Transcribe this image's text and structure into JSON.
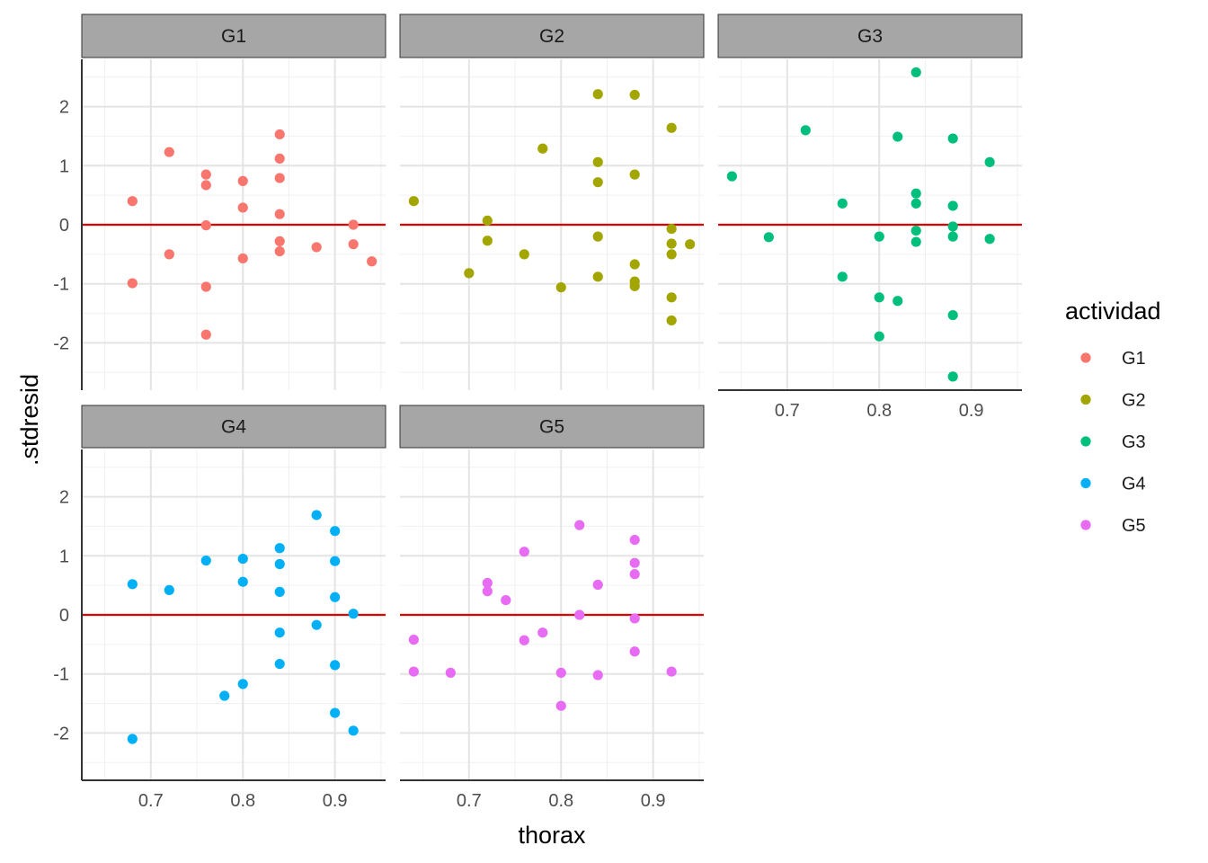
{
  "chart_data": {
    "type": "scatter",
    "xlabel": "thorax",
    "ylabel": ".stdresid",
    "xlim": [
      0.625,
      0.955
    ],
    "ylim": [
      -2.8,
      2.8
    ],
    "x_ticks": [
      0.7,
      0.8,
      0.9
    ],
    "x_tick_labels": [
      "0.7",
      "0.8",
      "0.9"
    ],
    "y_ticks": [
      -2,
      -1,
      0,
      1,
      2
    ],
    "y_tick_labels": [
      "-2",
      "-1",
      "0",
      "1",
      "2"
    ],
    "hline": {
      "y": 0,
      "color": "#e00000"
    },
    "grid": true,
    "legend": {
      "title": "actividad",
      "position": "right"
    },
    "facets": [
      {
        "name": "G1",
        "color": "#F8766D",
        "points": [
          [
            0.68,
            0.4
          ],
          [
            0.68,
            -0.99
          ],
          [
            0.72,
            1.23
          ],
          [
            0.72,
            -0.5
          ],
          [
            0.76,
            0.85
          ],
          [
            0.76,
            0.67
          ],
          [
            0.76,
            -0.01
          ],
          [
            0.76,
            -1.05
          ],
          [
            0.76,
            -1.86
          ],
          [
            0.8,
            0.74
          ],
          [
            0.8,
            0.29
          ],
          [
            0.8,
            -0.57
          ],
          [
            0.84,
            1.53
          ],
          [
            0.84,
            1.12
          ],
          [
            0.84,
            0.79
          ],
          [
            0.84,
            0.18
          ],
          [
            0.84,
            -0.28
          ],
          [
            0.84,
            -0.45
          ],
          [
            0.88,
            -0.38
          ],
          [
            0.92,
            0.0
          ],
          [
            0.92,
            -0.33
          ],
          [
            0.94,
            -0.62
          ]
        ]
      },
      {
        "name": "G2",
        "color": "#A3A500",
        "points": [
          [
            0.64,
            0.4
          ],
          [
            0.7,
            -0.82
          ],
          [
            0.72,
            0.07
          ],
          [
            0.72,
            -0.27
          ],
          [
            0.76,
            -0.5
          ],
          [
            0.78,
            1.29
          ],
          [
            0.8,
            -1.06
          ],
          [
            0.84,
            2.21
          ],
          [
            0.84,
            1.06
          ],
          [
            0.84,
            0.72
          ],
          [
            0.84,
            -0.2
          ],
          [
            0.84,
            -0.88
          ],
          [
            0.88,
            2.2
          ],
          [
            0.88,
            0.85
          ],
          [
            0.88,
            -0.67
          ],
          [
            0.88,
            -0.96
          ],
          [
            0.88,
            -1.04
          ],
          [
            0.92,
            1.64
          ],
          [
            0.92,
            -0.07
          ],
          [
            0.92,
            -0.32
          ],
          [
            0.92,
            -0.5
          ],
          [
            0.92,
            -1.23
          ],
          [
            0.92,
            -1.62
          ],
          [
            0.94,
            -0.33
          ]
        ]
      },
      {
        "name": "G3",
        "color": "#00BF7D",
        "points": [
          [
            0.64,
            0.82
          ],
          [
            0.68,
            -0.21
          ],
          [
            0.72,
            1.6
          ],
          [
            0.76,
            0.36
          ],
          [
            0.76,
            -0.88
          ],
          [
            0.8,
            -0.2
          ],
          [
            0.8,
            -1.23
          ],
          [
            0.8,
            -1.89
          ],
          [
            0.82,
            1.49
          ],
          [
            0.82,
            -1.29
          ],
          [
            0.84,
            2.58
          ],
          [
            0.84,
            0.53
          ],
          [
            0.84,
            0.36
          ],
          [
            0.84,
            -0.1
          ],
          [
            0.84,
            -0.29
          ],
          [
            0.88,
            1.46
          ],
          [
            0.88,
            0.32
          ],
          [
            0.88,
            -0.03
          ],
          [
            0.88,
            -0.2
          ],
          [
            0.88,
            -1.53
          ],
          [
            0.88,
            -2.57
          ],
          [
            0.92,
            1.06
          ],
          [
            0.92,
            -0.24
          ]
        ]
      },
      {
        "name": "G4",
        "color": "#00B0F6",
        "points": [
          [
            0.68,
            0.52
          ],
          [
            0.68,
            -2.1
          ],
          [
            0.72,
            0.42
          ],
          [
            0.76,
            0.92
          ],
          [
            0.78,
            -1.37
          ],
          [
            0.8,
            0.95
          ],
          [
            0.8,
            0.56
          ],
          [
            0.8,
            -1.17
          ],
          [
            0.84,
            1.13
          ],
          [
            0.84,
            0.86
          ],
          [
            0.84,
            0.39
          ],
          [
            0.84,
            -0.3
          ],
          [
            0.84,
            -0.83
          ],
          [
            0.88,
            1.69
          ],
          [
            0.88,
            -0.17
          ],
          [
            0.9,
            1.42
          ],
          [
            0.9,
            0.91
          ],
          [
            0.9,
            0.3
          ],
          [
            0.9,
            -0.85
          ],
          [
            0.9,
            -1.66
          ],
          [
            0.92,
            0.02
          ],
          [
            0.92,
            -1.96
          ]
        ]
      },
      {
        "name": "G5",
        "color": "#E76BF3",
        "points": [
          [
            0.64,
            -0.42
          ],
          [
            0.64,
            -0.96
          ],
          [
            0.68,
            -0.98
          ],
          [
            0.72,
            0.54
          ],
          [
            0.72,
            0.4
          ],
          [
            0.74,
            0.25
          ],
          [
            0.76,
            1.07
          ],
          [
            0.76,
            -0.43
          ],
          [
            0.78,
            -0.3
          ],
          [
            0.8,
            -0.98
          ],
          [
            0.8,
            -1.54
          ],
          [
            0.82,
            1.52
          ],
          [
            0.82,
            0.0
          ],
          [
            0.84,
            0.51
          ],
          [
            0.84,
            -1.02
          ],
          [
            0.88,
            1.27
          ],
          [
            0.88,
            0.88
          ],
          [
            0.88,
            0.69
          ],
          [
            0.88,
            -0.06
          ],
          [
            0.88,
            -0.62
          ],
          [
            0.92,
            -0.96
          ]
        ]
      }
    ]
  },
  "colors": {
    "G1": "#F8766D",
    "G2": "#A3A500",
    "G3": "#00BF7D",
    "G4": "#00B0F6",
    "G5": "#E76BF3"
  }
}
